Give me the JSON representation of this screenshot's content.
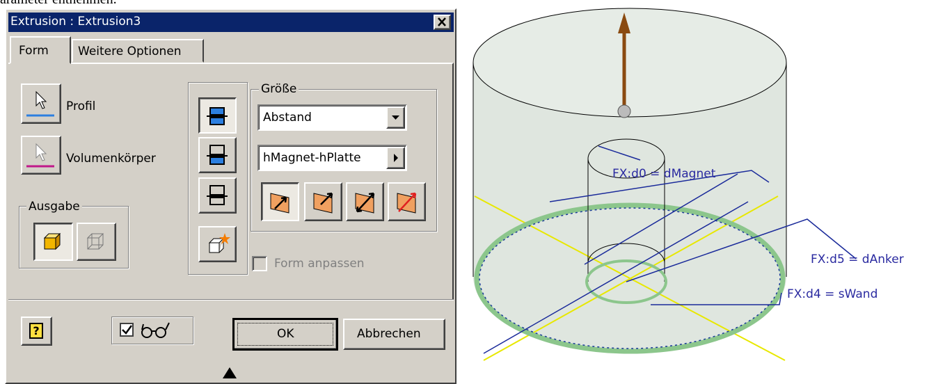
{
  "header": {
    "text": "arameter entnehmen."
  },
  "dialog": {
    "title": "Extrusion : Extrusion3",
    "tabs": [
      "Form",
      "Weitere Optionen"
    ],
    "profile_label": "Profil",
    "solid_label": "Volumenkörper",
    "output_group": "Ausgabe",
    "size_group": "Größe",
    "extent_dropdown": "Abstand",
    "distance_field": "hMagnet-hPlatte",
    "match_shape": "Form anpassen",
    "ok": "OK",
    "cancel": "Abbrechen"
  },
  "viewport": {
    "labels": [
      "FX:d0 = dMagnet",
      "FX:d5 = dAnker",
      "FX:d4 = sWand"
    ]
  }
}
